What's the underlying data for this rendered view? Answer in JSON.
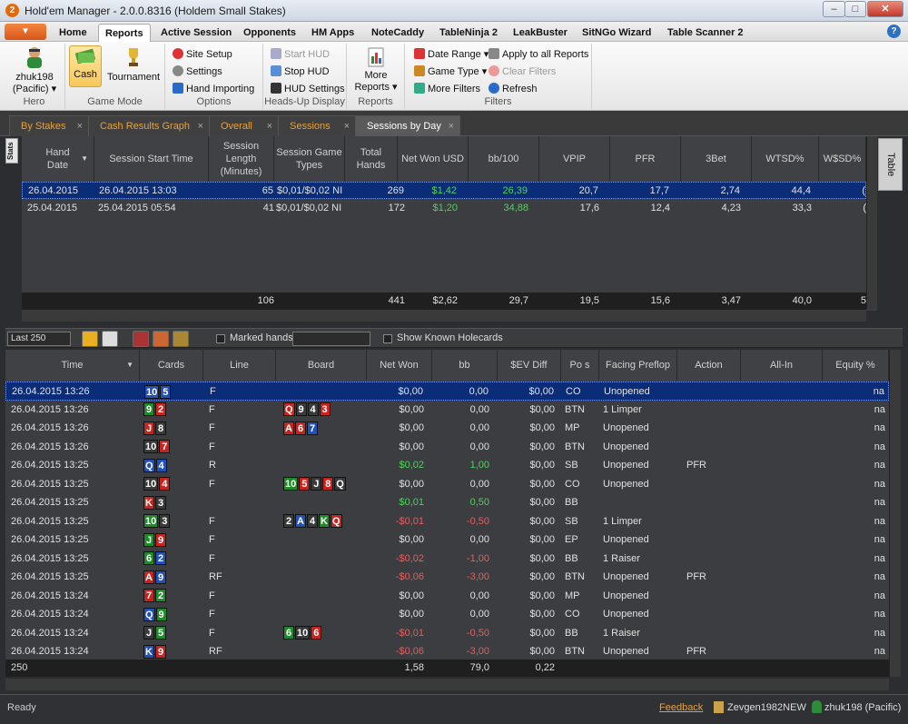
{
  "window": {
    "title": "Hold'em Manager - 2.0.0.8316 (Holdem Small Stakes)",
    "icon": "2",
    "min": "–",
    "max": "□",
    "close": "✕"
  },
  "menu": {
    "app_button": "▼",
    "tabs": [
      "Home",
      "Reports",
      "Active Session",
      "Opponents",
      "HM Apps",
      "NoteCaddy",
      "TableNinja 2",
      "LeakBuster",
      "SitNGo Wizard",
      "Table Scanner 2"
    ],
    "help": "?"
  },
  "ribbon": {
    "hero": {
      "name": "zhuk198",
      "site": "(Pacific) ▾",
      "label": "Hero"
    },
    "game_mode": {
      "cash": "Cash",
      "tournament": "Tournament",
      "label": "Game Mode"
    },
    "options": {
      "site_setup": "Site Setup",
      "settings": "Settings",
      "hand_importing": "Hand Importing",
      "label": "Options"
    },
    "hud": {
      "start": "Start HUD",
      "stop": "Stop HUD",
      "settings": "HUD Settings",
      "label": "Heads-Up Display"
    },
    "reports": {
      "more": "More",
      "reports": "Reports ▾",
      "label": "Reports"
    },
    "filters": {
      "date_range": "Date Range ▾",
      "game_type": "Game Type ▾",
      "more_filters": "More Filters",
      "apply_all": "Apply to all Reports",
      "clear": "Clear Filters",
      "refresh": "Refresh",
      "label": "Filters"
    }
  },
  "doc_tabs": [
    "By Stakes",
    "Cash Results Graph",
    "Overall",
    "Sessions",
    "Sessions by Day"
  ],
  "side": {
    "stats": "Stats",
    "table": "Table"
  },
  "sessions": {
    "headers": [
      "Hand Date",
      "Session Start Time",
      "Session Length (Minutes)",
      "Session Game Types",
      "Total Hands",
      "Net Won USD",
      "bb/100",
      "VPIP",
      "PFR",
      "3Bet",
      "WTSD%",
      "W$SD%"
    ],
    "rows": [
      [
        "26.04.2015",
        "26.04.2015 13:03",
        "65",
        "$0,01/$0,02 NI",
        "269",
        "$1,42",
        "26,39",
        "20,7",
        "17,7",
        "2,74",
        "44,4",
        "("
      ],
      [
        "25.04.2015",
        "25.04.2015 05:54",
        "41",
        "$0,01/$0,02 NI",
        "172",
        "$1,20",
        "34,88",
        "17,6",
        "12,4",
        "4,23",
        "33,3",
        "("
      ]
    ],
    "totals": [
      "106",
      "441",
      "$2,62",
      "29,7",
      "19,5",
      "15,6",
      "3,47",
      "40,0",
      "5"
    ]
  },
  "toolbar": {
    "last": "Last 250",
    "marked": "Marked hands",
    "show_known": "Show Known Holecards"
  },
  "hands": {
    "headers": [
      "Time",
      "Cards",
      "Line",
      "Board",
      "Net Won",
      "bb",
      "$EV Diff",
      "Po s",
      "Facing Preflop",
      "Action",
      "All-In",
      "Equity %"
    ],
    "rows": [
      {
        "time": "26.04.2015 13:26",
        "cards": [
          [
            "10",
            "cb"
          ],
          [
            "5",
            "cb"
          ]
        ],
        "line": "F",
        "board": [],
        "net": "$0,00",
        "bb": "0,00",
        "ev": "$0,00",
        "pos": "CO",
        "facing": "Unopened",
        "action": "",
        "eq": "na",
        "cls": ""
      },
      {
        "time": "26.04.2015 13:26",
        "cards": [
          [
            "9",
            "cg"
          ],
          [
            "2",
            "cr"
          ]
        ],
        "line": "F",
        "board": [
          [
            "Q",
            "cr"
          ],
          [
            "9",
            "ck"
          ],
          [
            "4",
            "ck"
          ],
          [
            "3",
            "cr"
          ]
        ],
        "net": "$0,00",
        "bb": "0,00",
        "ev": "$0,00",
        "pos": "BTN",
        "facing": "1 Limper",
        "action": "",
        "eq": "na",
        "cls": ""
      },
      {
        "time": "26.04.2015 13:26",
        "cards": [
          [
            "J",
            "cr"
          ],
          [
            "8",
            "ck"
          ]
        ],
        "line": "F",
        "board": [
          [
            "A",
            "cr"
          ],
          [
            "6",
            "cr"
          ],
          [
            "7",
            "cb"
          ]
        ],
        "net": "$0,00",
        "bb": "0,00",
        "ev": "$0,00",
        "pos": "MP",
        "facing": "Unopened",
        "action": "",
        "eq": "na",
        "cls": ""
      },
      {
        "time": "26.04.2015 13:26",
        "cards": [
          [
            "10",
            "ck"
          ],
          [
            "7",
            "cr"
          ]
        ],
        "line": "F",
        "board": [],
        "net": "$0,00",
        "bb": "0,00",
        "ev": "$0,00",
        "pos": "BTN",
        "facing": "Unopened",
        "action": "",
        "eq": "na",
        "cls": ""
      },
      {
        "time": "26.04.2015 13:25",
        "cards": [
          [
            "Q",
            "cb"
          ],
          [
            "4",
            "cb"
          ]
        ],
        "line": "R",
        "board": [],
        "net": "$0,02",
        "bb": "1,00",
        "ev": "$0,00",
        "pos": "SB",
        "facing": "Unopened",
        "action": "PFR",
        "eq": "na",
        "cls": "grn"
      },
      {
        "time": "26.04.2015 13:25",
        "cards": [
          [
            "10",
            "ck"
          ],
          [
            "4",
            "cr"
          ]
        ],
        "line": "F",
        "board": [
          [
            "10",
            "cg"
          ],
          [
            "5",
            "cr"
          ],
          [
            "J",
            "ck"
          ],
          [
            "8",
            "cr"
          ],
          [
            "Q",
            "ck"
          ]
        ],
        "net": "$0,00",
        "bb": "0,00",
        "ev": "$0,00",
        "pos": "CO",
        "facing": "Unopened",
        "action": "",
        "eq": "na",
        "cls": ""
      },
      {
        "time": "26.04.2015 13:25",
        "cards": [
          [
            "K",
            "cr"
          ],
          [
            "3",
            "ck"
          ]
        ],
        "line": "",
        "board": [],
        "net": "$0,01",
        "bb": "0,50",
        "ev": "$0,00",
        "pos": "BB",
        "facing": "",
        "action": "",
        "eq": "na",
        "cls": "grn"
      },
      {
        "time": "26.04.2015 13:25",
        "cards": [
          [
            "10",
            "cg"
          ],
          [
            "3",
            "ck"
          ]
        ],
        "line": "F",
        "board": [
          [
            "2",
            "ck"
          ],
          [
            "A",
            "cb"
          ],
          [
            "4",
            "ck"
          ],
          [
            "K",
            "cg"
          ],
          [
            "Q",
            "cr"
          ]
        ],
        "net": "-$0,01",
        "bb": "-0,50",
        "ev": "$0,00",
        "pos": "SB",
        "facing": "1 Limper",
        "action": "",
        "eq": "na",
        "cls": "red"
      },
      {
        "time": "26.04.2015 13:25",
        "cards": [
          [
            "J",
            "cg"
          ],
          [
            "9",
            "cr"
          ]
        ],
        "line": "F",
        "board": [],
        "net": "$0,00",
        "bb": "0,00",
        "ev": "$0,00",
        "pos": "EP",
        "facing": "Unopened",
        "action": "",
        "eq": "na",
        "cls": ""
      },
      {
        "time": "26.04.2015 13:25",
        "cards": [
          [
            "6",
            "cg"
          ],
          [
            "2",
            "cb"
          ]
        ],
        "line": "F",
        "board": [],
        "net": "-$0,02",
        "bb": "-1,00",
        "ev": "$0,00",
        "pos": "BB",
        "facing": "1 Raiser",
        "action": "",
        "eq": "na",
        "cls": "red"
      },
      {
        "time": "26.04.2015 13:25",
        "cards": [
          [
            "A",
            "cr"
          ],
          [
            "9",
            "cb"
          ]
        ],
        "line": "RF",
        "board": [],
        "net": "-$0,06",
        "bb": "-3,00",
        "ev": "$0,00",
        "pos": "BTN",
        "facing": "Unopened",
        "action": "PFR",
        "eq": "na",
        "cls": "red"
      },
      {
        "time": "26.04.2015 13:24",
        "cards": [
          [
            "7",
            "cr"
          ],
          [
            "2",
            "cg"
          ]
        ],
        "line": "F",
        "board": [],
        "net": "$0,00",
        "bb": "0,00",
        "ev": "$0,00",
        "pos": "MP",
        "facing": "Unopened",
        "action": "",
        "eq": "na",
        "cls": ""
      },
      {
        "time": "26.04.2015 13:24",
        "cards": [
          [
            "Q",
            "cb"
          ],
          [
            "9",
            "cg"
          ]
        ],
        "line": "F",
        "board": [],
        "net": "$0,00",
        "bb": "0,00",
        "ev": "$0,00",
        "pos": "CO",
        "facing": "Unopened",
        "action": "",
        "eq": "na",
        "cls": ""
      },
      {
        "time": "26.04.2015 13:24",
        "cards": [
          [
            "J",
            "ck"
          ],
          [
            "5",
            "cg"
          ]
        ],
        "line": "F",
        "board": [
          [
            "6",
            "cg"
          ],
          [
            "10",
            "ck"
          ],
          [
            "6",
            "cr"
          ]
        ],
        "net": "-$0,01",
        "bb": "-0,50",
        "ev": "$0,00",
        "pos": "BB",
        "facing": "1 Raiser",
        "action": "",
        "eq": "na",
        "cls": "red"
      },
      {
        "time": "26.04.2015 13:24",
        "cards": [
          [
            "K",
            "cb"
          ],
          [
            "9",
            "cr"
          ]
        ],
        "line": "RF",
        "board": [],
        "net": "-$0,06",
        "bb": "-3,00",
        "ev": "$0,00",
        "pos": "BTN",
        "facing": "Unopened",
        "action": "PFR",
        "eq": "na",
        "cls": "red"
      }
    ],
    "totals": {
      "count": "250",
      "net": "1,58",
      "bb": "79,0",
      "ev": "0,22"
    }
  },
  "status": {
    "ready": "Ready",
    "feedback": "Feedback",
    "user1": "Zevgen1982NEW",
    "user2": "zhuk198 (Pacific)"
  }
}
